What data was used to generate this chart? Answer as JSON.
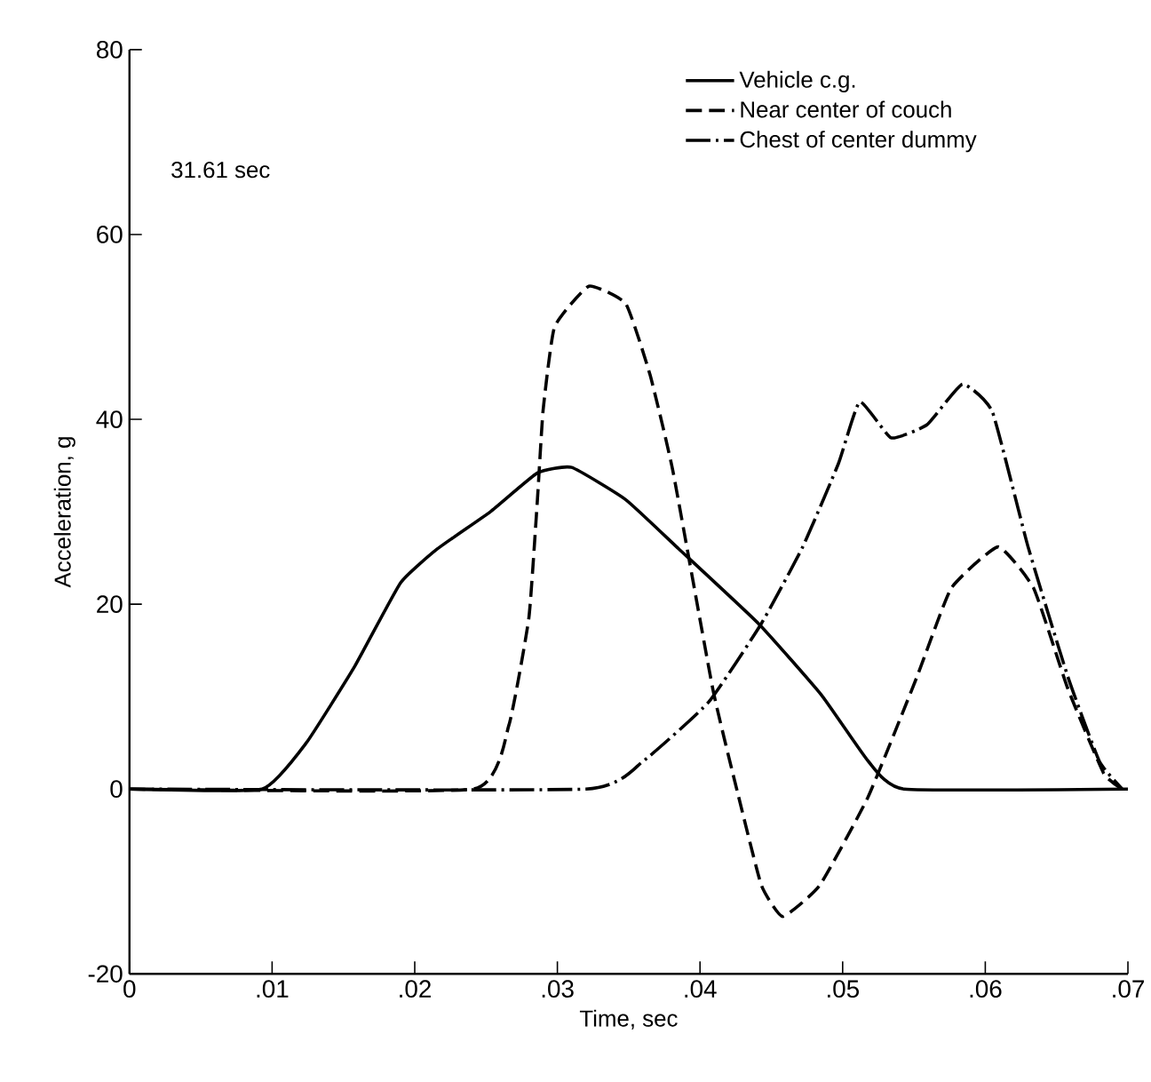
{
  "chart_data": {
    "type": "line",
    "xlabel": "Time, sec",
    "ylabel": "Acceleration, g",
    "annotations": [
      "31.61 sec"
    ],
    "xlim": [
      0,
      0.07
    ],
    "ylim": [
      -20,
      80
    ],
    "xticks": [
      0,
      {
        "value": 0.01,
        "label": ".01"
      },
      {
        "value": 0.02,
        "label": ".02"
      },
      {
        "value": 0.03,
        "label": ".03"
      },
      {
        "value": 0.04,
        "label": ".04"
      },
      {
        "value": 0.05,
        "label": ".05"
      },
      {
        "value": 0.06,
        "label": ".06"
      },
      {
        "value": 0.07,
        "label": ".07"
      }
    ],
    "yticks": [
      -20,
      0,
      20,
      40,
      60,
      80
    ],
    "legend": "top right",
    "series": [
      {
        "name": "Vehicle c.g.",
        "color": "#000000",
        "line_style": "solid",
        "x": [
          0,
          0.0093,
          0.0124,
          0.0158,
          0.019,
          0.0216,
          0.0253,
          0.0286,
          0.031,
          0.0348,
          0.0385,
          0.0441,
          0.0485,
          0.0518,
          0.0543,
          0.07
        ],
        "values": [
          0,
          0,
          5,
          13.3,
          22.3,
          26,
          30,
          34.2,
          34.8,
          31.3,
          26,
          17.9,
          10.2,
          3,
          0,
          0
        ]
      },
      {
        "name": "Near center of couch",
        "color": "#000000",
        "line_style": "dashed",
        "x": [
          0,
          0.0241,
          0.0266,
          0.028,
          0.0286,
          0.029,
          0.0298,
          0.0322,
          0.0348,
          0.0365,
          0.0381,
          0.0409,
          0.0427,
          0.0443,
          0.0458,
          0.0484,
          0.0518,
          0.0552,
          0.0576,
          0.0609,
          0.0634,
          0.0658,
          0.0683,
          0.0696
        ],
        "values": [
          0,
          0,
          6.9,
          18.5,
          31.3,
          41,
          50,
          54.4,
          52.5,
          44.8,
          34.4,
          10.8,
          -0.8,
          -10.4,
          -13.8,
          -10.4,
          -0.8,
          12.1,
          21.7,
          26.2,
          21.7,
          10.8,
          1.7,
          0
        ]
      },
      {
        "name": "Chest of center dummy",
        "color": "#000000",
        "line_style": "dashdot",
        "x": [
          0,
          0.032,
          0.036,
          0.0406,
          0.0443,
          0.0472,
          0.0497,
          0.0512,
          0.0534,
          0.0559,
          0.0584,
          0.0605,
          0.063,
          0.0658,
          0.068,
          0.0696
        ],
        "values": [
          0,
          0,
          3,
          9.4,
          17.9,
          26.2,
          35.2,
          41.9,
          38,
          39.4,
          43.8,
          40.8,
          26.2,
          12.1,
          3,
          0
        ]
      }
    ]
  }
}
